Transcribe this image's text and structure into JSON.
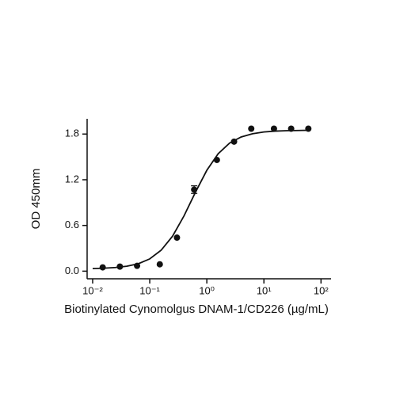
{
  "chart_data": {
    "type": "scatter",
    "x_label": "Biotinylated Cynomolgus DNAM-1/CD226 (µg/mL)",
    "y_label": "OD 450mm",
    "xscale": "log",
    "xlim": [
      0.008,
      150
    ],
    "ylim": [
      -0.1,
      2.0
    ],
    "xticks": [
      {
        "value": 0.01,
        "label": "10⁻²"
      },
      {
        "value": 0.1,
        "label": "10⁻¹"
      },
      {
        "value": 1,
        "label": "10⁰"
      },
      {
        "value": 10,
        "label": "10¹"
      },
      {
        "value": 100,
        "label": "10²"
      }
    ],
    "yticks": [
      {
        "value": 0,
        "label": "0.0"
      },
      0.6,
      1.2,
      1.8
    ],
    "series": [
      {
        "kind": "points",
        "color": "#111111",
        "x": [
          0.015,
          0.03,
          0.06,
          0.15,
          0.3,
          0.6,
          1.5,
          3,
          6,
          15,
          30,
          60
        ],
        "values": [
          0.05,
          0.06,
          0.07,
          0.09,
          0.44,
          1.07,
          1.46,
          1.7,
          1.87,
          1.87,
          1.87,
          1.87
        ],
        "errors": [
          null,
          null,
          null,
          null,
          null,
          0.05,
          null,
          null,
          null,
          null,
          null,
          null
        ]
      },
      {
        "kind": "line",
        "color": "#111111",
        "x": [
          0.01,
          0.0158,
          0.0251,
          0.0398,
          0.0631,
          0.1,
          0.158,
          0.251,
          0.398,
          0.631,
          1,
          1.58,
          2.51,
          3.98,
          6.31,
          10,
          15.8,
          25.1,
          39.8,
          63.1
        ],
        "values": [
          0.034,
          0.039,
          0.048,
          0.065,
          0.098,
          0.161,
          0.274,
          0.459,
          0.725,
          1.035,
          1.324,
          1.542,
          1.682,
          1.761,
          1.804,
          1.827,
          1.838,
          1.844,
          1.847,
          1.849
        ]
      }
    ]
  }
}
